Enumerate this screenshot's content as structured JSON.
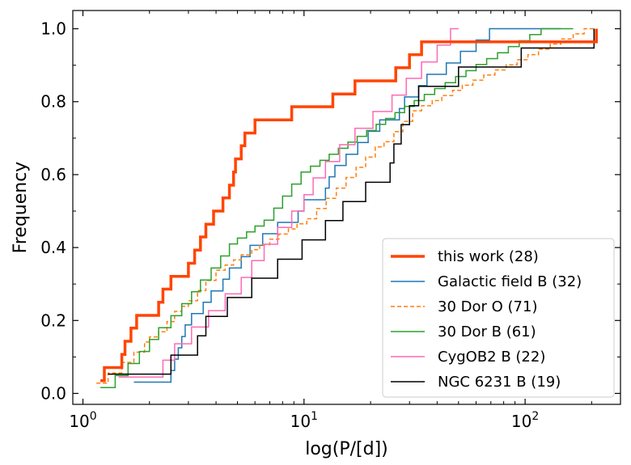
{
  "chart_data": {
    "type": "line",
    "step": true,
    "xlabel": "log(P/[d])",
    "ylabel": "Frequency",
    "x_scale": "log",
    "xlim": [
      0.9,
      270
    ],
    "ylim": [
      -0.03,
      1.05
    ],
    "x_ticks": [
      {
        "value": 1,
        "base": "10",
        "exp": "0"
      },
      {
        "value": 10,
        "base": "10",
        "exp": "1"
      },
      {
        "value": 100,
        "base": "10",
        "exp": "2"
      }
    ],
    "y_ticks": [
      {
        "value": 0.0,
        "label": "0.0"
      },
      {
        "value": 0.2,
        "label": "0.2"
      },
      {
        "value": 0.4,
        "label": "0.4"
      },
      {
        "value": 0.6,
        "label": "0.6"
      },
      {
        "value": 0.8,
        "label": "0.8"
      },
      {
        "value": 1.0,
        "label": "1.0"
      }
    ],
    "legend_position": "lower-right",
    "series": [
      {
        "name": "this work (28)",
        "color": "#ff4500",
        "style": "solid",
        "width": 3.5,
        "x": [
          1.2,
          1.25,
          1.45,
          1.5,
          1.55,
          1.6,
          1.65,
          1.75,
          2.2,
          2.3,
          2.5,
          2.6,
          2.7,
          2.9,
          3.0,
          3.2,
          3.4,
          3.6,
          3.9,
          4.3,
          4.6,
          4.8,
          4.9,
          5.1,
          5.2,
          5.4,
          6.0,
          8.8,
          10.0,
          13.5,
          17.0,
          26.0,
          30.0,
          34.0,
          180,
          210
        ],
        "y": [
          0.035,
          0.071,
          0.071,
          0.107,
          0.143,
          0.143,
          0.179,
          0.214,
          0.25,
          0.286,
          0.321,
          0.321,
          0.321,
          0.321,
          0.357,
          0.393,
          0.429,
          0.464,
          0.5,
          0.536,
          0.571,
          0.607,
          0.643,
          0.643,
          0.679,
          0.714,
          0.75,
          0.786,
          0.786,
          0.821,
          0.857,
          0.893,
          0.929,
          0.964,
          0.964,
          1.0
        ]
      },
      {
        "name": "Galactic field B (32)",
        "color": "#1f77b4",
        "style": "solid",
        "width": 1.5,
        "x": [
          1.7,
          2.5,
          2.6,
          2.7,
          2.8,
          2.9,
          3.1,
          3.5,
          3.8,
          4.3,
          4.6,
          5.2,
          5.7,
          6.5,
          7.6,
          9.4,
          10.0,
          12.5,
          13.0,
          13.8,
          15.5,
          17.5,
          19.5,
          22.0,
          27.0,
          28.5,
          33.0,
          36.0,
          44.0,
          51.0,
          60.0,
          69.0,
          82.0,
          95.0,
          102.0,
          112.0,
          125.0,
          145.0
        ],
        "y": [
          0.031,
          0.063,
          0.094,
          0.125,
          0.156,
          0.188,
          0.219,
          0.25,
          0.281,
          0.313,
          0.344,
          0.375,
          0.406,
          0.438,
          0.469,
          0.5,
          0.531,
          0.563,
          0.594,
          0.625,
          0.656,
          0.688,
          0.719,
          0.75,
          0.781,
          0.813,
          0.844,
          0.875,
          0.906,
          0.938,
          0.969,
          1.0,
          1.0,
          1.0,
          1.0,
          1.0,
          1.0,
          1.0
        ]
      },
      {
        "name": "30 Dor O (71)",
        "color": "#ff7f0e",
        "style": "dashed",
        "width": 1.5,
        "x": [
          1.15,
          1.3,
          1.5,
          1.7,
          1.9,
          2.0,
          2.2,
          2.4,
          2.6,
          2.8,
          3.0,
          3.3,
          3.6,
          4.0,
          4.4,
          4.8,
          5.2,
          5.8,
          6.3,
          7.0,
          7.7,
          8.5,
          9.3,
          10.3,
          11.4,
          12.6,
          14.0,
          15.5,
          17.2,
          19.0,
          21.0,
          23.0,
          25.5,
          28.0,
          31.0,
          34.0,
          38.0,
          42.0,
          47.0,
          52.0,
          58.0,
          65.0,
          73.0,
          82.0,
          92.0,
          103.0,
          115.0,
          130.0,
          145.0,
          165.0,
          185.0,
          205.0
        ],
        "y": [
          0.028,
          0.056,
          0.085,
          0.113,
          0.141,
          0.155,
          0.169,
          0.197,
          0.225,
          0.239,
          0.254,
          0.282,
          0.31,
          0.338,
          0.352,
          0.366,
          0.38,
          0.394,
          0.408,
          0.423,
          0.437,
          0.451,
          0.465,
          0.479,
          0.507,
          0.535,
          0.563,
          0.592,
          0.62,
          0.648,
          0.676,
          0.69,
          0.718,
          0.746,
          0.775,
          0.789,
          0.803,
          0.817,
          0.831,
          0.845,
          0.859,
          0.873,
          0.887,
          0.901,
          0.915,
          0.929,
          0.944,
          0.958,
          0.972,
          0.986,
          1.0,
          1.0
        ]
      },
      {
        "name": "30 Dor B (61)",
        "color": "#2ca02c",
        "style": "solid",
        "width": 1.5,
        "x": [
          1.2,
          1.4,
          1.6,
          1.8,
          2.0,
          2.2,
          2.5,
          2.8,
          3.1,
          3.4,
          3.8,
          4.2,
          4.6,
          5.0,
          5.5,
          6.0,
          6.6,
          7.3,
          8.0,
          8.8,
          9.7,
          10.7,
          11.8,
          13.0,
          14.3,
          15.8,
          17.4,
          19.2,
          21.2,
          23.4,
          25.8,
          28.5,
          31.5,
          35.0,
          39.0,
          43.5,
          48.5,
          54.0,
          60.0,
          67.0,
          75.0,
          84.0,
          94.0,
          105.0,
          118.0,
          132.0,
          148.0,
          165.0
        ],
        "y": [
          0.016,
          0.049,
          0.082,
          0.115,
          0.148,
          0.18,
          0.213,
          0.246,
          0.279,
          0.311,
          0.344,
          0.377,
          0.41,
          0.426,
          0.443,
          0.459,
          0.475,
          0.508,
          0.541,
          0.574,
          0.607,
          0.623,
          0.639,
          0.656,
          0.672,
          0.689,
          0.705,
          0.721,
          0.738,
          0.754,
          0.77,
          0.787,
          0.803,
          0.82,
          0.836,
          0.852,
          0.869,
          0.885,
          0.902,
          0.918,
          0.934,
          0.951,
          0.967,
          0.984,
          1.0,
          1.0,
          1.0,
          1.0
        ]
      },
      {
        "name": "CygOB2 B (22)",
        "color": "#ff69b4",
        "style": "solid",
        "width": 1.5,
        "x": [
          1.45,
          2.3,
          2.6,
          3.1,
          3.7,
          4.4,
          5.2,
          5.8,
          6.6,
          7.6,
          8.8,
          10.0,
          11.0,
          12.5,
          14.5,
          17.0,
          20.5,
          25.0,
          29.0,
          34.0,
          40.0,
          46.0,
          50.0
        ],
        "y": [
          0.045,
          0.091,
          0.136,
          0.182,
          0.227,
          0.273,
          0.318,
          0.364,
          0.409,
          0.455,
          0.5,
          0.545,
          0.591,
          0.636,
          0.682,
          0.727,
          0.773,
          0.818,
          0.864,
          0.909,
          0.955,
          1.0,
          1.0
        ]
      },
      {
        "name": "NGC 6231 B (19)",
        "color": "#000000",
        "style": "solid",
        "width": 1.5,
        "x": [
          1.3,
          2.5,
          3.3,
          3.6,
          4.5,
          5.8,
          7.6,
          9.8,
          12.5,
          15.0,
          19.0,
          24.5,
          25.5,
          27.5,
          30.0,
          33.0,
          50.0,
          96.0,
          108.0,
          128.0,
          205.0
        ],
        "y": [
          0.053,
          0.105,
          0.158,
          0.211,
          0.263,
          0.316,
          0.368,
          0.421,
          0.474,
          0.526,
          0.579,
          0.632,
          0.684,
          0.737,
          0.789,
          0.842,
          0.895,
          0.947,
          0.947,
          0.947,
          1.0
        ]
      }
    ]
  }
}
